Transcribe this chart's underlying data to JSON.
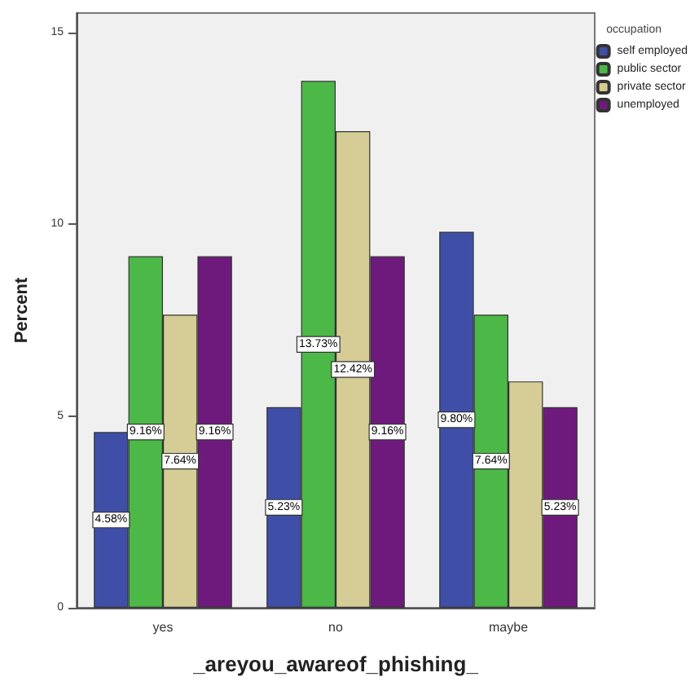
{
  "chart_data": {
    "type": "bar",
    "xlabel": "_areyou_awareof_phishing_",
    "ylabel": "Percent",
    "legend_title": "occupation",
    "categories": [
      "yes",
      "no",
      "maybe"
    ],
    "series": [
      {
        "name": "self employed",
        "color": "#3f4fa8",
        "values": [
          4.58,
          5.23,
          9.8
        ],
        "value_labels": [
          "4.58%",
          "5.23%",
          "9.80%"
        ]
      },
      {
        "name": "public sector",
        "color": "#4cb848",
        "values": [
          9.16,
          13.73,
          7.64
        ],
        "value_labels": [
          "9.16%",
          "13.73%",
          "7.64%"
        ]
      },
      {
        "name": "private sector",
        "color": "#d6cc96",
        "values": [
          7.64,
          12.42,
          5.9
        ],
        "value_labels": [
          "7.64%",
          "12.42%",
          null
        ]
      },
      {
        "name": "unemployed",
        "color": "#6e1a7c",
        "values": [
          9.16,
          9.16,
          5.23
        ],
        "value_labels": [
          "9.16%",
          "9.16%",
          "5.23%"
        ]
      }
    ],
    "ylim": [
      0,
      15.5
    ],
    "yticks": [
      0,
      5,
      10,
      15
    ],
    "grid": false,
    "legend": "top right"
  }
}
